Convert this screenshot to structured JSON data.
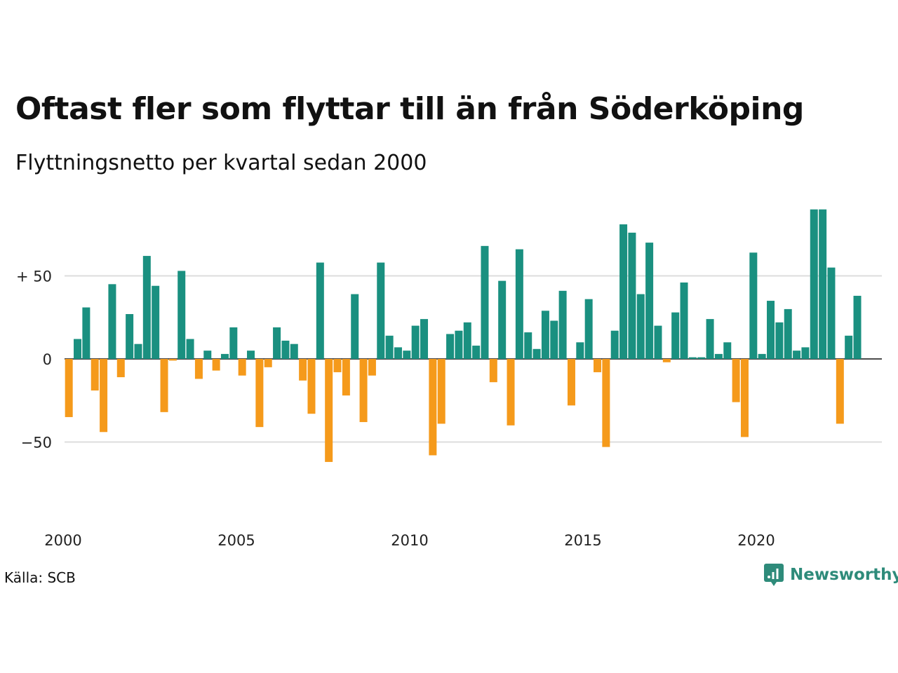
{
  "title": "Oftast fler som flyttar till än från Söderköping",
  "subtitle": "Flyttningsnetto per kvartal sedan 2000",
  "source": "Källa: SCB",
  "brand": "Newsworthy",
  "colors": {
    "positive": "#1a9080",
    "negative": "#f59a1b",
    "grid": "#dddddd",
    "brand": "#2e8b7a"
  },
  "icons": {
    "logo": "newsworthy-logo-icon"
  },
  "chart_data": {
    "type": "bar",
    "x_start": "2000 Q1",
    "x_tick_labels": [
      "2000",
      "2005",
      "2010",
      "2015",
      "2020"
    ],
    "y_tick_labels": [
      "+ 50",
      "0",
      "−50"
    ],
    "y_ticks": [
      50,
      0,
      -50
    ],
    "ylim": [
      -85,
      90
    ],
    "grid": true,
    "values": [
      -35,
      12,
      31,
      -19,
      -44,
      45,
      -11,
      27,
      9,
      62,
      44,
      -32,
      -1,
      53,
      12,
      -12,
      5,
      -7,
      3,
      19,
      -10,
      5,
      -41,
      -5,
      19,
      11,
      9,
      -13,
      -33,
      58,
      -62,
      -8,
      -22,
      39,
      -38,
      -10,
      58,
      14,
      7,
      5,
      20,
      24,
      -58,
      -39,
      15,
      17,
      22,
      8,
      68,
      -14,
      47,
      -40,
      66,
      16,
      6,
      29,
      23,
      41,
      -28,
      10,
      36,
      -8,
      -53,
      17,
      81,
      76,
      39,
      70,
      20,
      -2,
      28,
      46,
      1,
      1,
      24,
      3,
      10,
      -26,
      -47,
      64,
      3,
      35,
      22,
      30,
      5,
      7,
      90,
      90,
      55,
      -39,
      14,
      38
    ]
  }
}
